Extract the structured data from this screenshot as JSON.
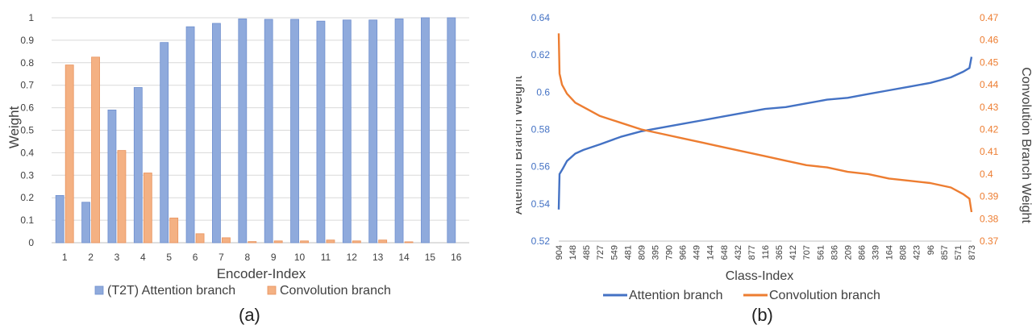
{
  "chart_data": [
    {
      "panel": "(a)",
      "type": "bar",
      "xlabel": "Encoder-Index",
      "ylabel": "Weight",
      "ylim": [
        0,
        1
      ],
      "yticks": [
        "0",
        "0.1",
        "0.2",
        "0.3",
        "0.4",
        "0.5",
        "0.6",
        "0.7",
        "0.8",
        "0.9",
        "1"
      ],
      "grid": true,
      "legend_position": "bottom",
      "categories": [
        "1",
        "2",
        "3",
        "4",
        "5",
        "6",
        "7",
        "8",
        "9",
        "10",
        "11",
        "12",
        "13",
        "14",
        "15",
        "16"
      ],
      "series": [
        {
          "name": "(T2T) Attention branch",
          "color": "#8faadc",
          "values": [
            0.21,
            0.18,
            0.59,
            0.69,
            0.89,
            0.96,
            0.975,
            0.995,
            0.993,
            0.993,
            0.985,
            0.99,
            0.99,
            0.995,
            1.0,
            1.0
          ]
        },
        {
          "name": "Convolution branch",
          "color": "#f4b183",
          "values": [
            0.79,
            0.825,
            0.41,
            0.31,
            0.11,
            0.04,
            0.022,
            0.005,
            0.008,
            0.008,
            0.012,
            0.008,
            0.012,
            0.004,
            0.0,
            0.0
          ]
        }
      ]
    },
    {
      "panel": "(b)",
      "type": "line",
      "xlabel": "Class-Index",
      "ylabel": "Attention Branch Weight",
      "y2label": "Convolution Branch Weight",
      "ylim": [
        0.52,
        0.64
      ],
      "yticks": [
        "0.52",
        "0.54",
        "0.56",
        "0.58",
        "0.6",
        "0.62",
        "0.64"
      ],
      "y2lim": [
        0.37,
        0.47
      ],
      "y2ticks": [
        "0.37",
        "0.38",
        "0.39",
        "0.4",
        "0.41",
        "0.42",
        "0.43",
        "0.44",
        "0.45",
        "0.46",
        "0.47"
      ],
      "grid": false,
      "legend_position": "bottom",
      "x_tick_labels": [
        "904",
        "148",
        "485",
        "727",
        "549",
        "481",
        "809",
        "395",
        "790",
        "966",
        "449",
        "144",
        "648",
        "432",
        "877",
        "116",
        "365",
        "412",
        "707",
        "561",
        "836",
        "209",
        "866",
        "339",
        "164",
        "808",
        "423",
        "96",
        "857",
        "571",
        "873"
      ],
      "series": [
        {
          "name": "Attention branch",
          "axis": "left",
          "color": "#4472c4",
          "points": [
            [
              0,
              0.537
            ],
            [
              0.002,
              0.556
            ],
            [
              0.01,
              0.559
            ],
            [
              0.02,
              0.563
            ],
            [
              0.04,
              0.567
            ],
            [
              0.06,
              0.569
            ],
            [
              0.1,
              0.572
            ],
            [
              0.15,
              0.576
            ],
            [
              0.2,
              0.579
            ],
            [
              0.25,
              0.581
            ],
            [
              0.3,
              0.583
            ],
            [
              0.35,
              0.585
            ],
            [
              0.4,
              0.587
            ],
            [
              0.45,
              0.589
            ],
            [
              0.5,
              0.591
            ],
            [
              0.55,
              0.592
            ],
            [
              0.6,
              0.594
            ],
            [
              0.65,
              0.596
            ],
            [
              0.7,
              0.597
            ],
            [
              0.75,
              0.599
            ],
            [
              0.8,
              0.601
            ],
            [
              0.85,
              0.603
            ],
            [
              0.9,
              0.605
            ],
            [
              0.95,
              0.608
            ],
            [
              0.98,
              0.611
            ],
            [
              0.995,
              0.613
            ],
            [
              1,
              0.619
            ]
          ]
        },
        {
          "name": "Convolution branch",
          "axis": "right",
          "color": "#ed7d31",
          "points": [
            [
              0,
              0.463
            ],
            [
              0.002,
              0.445
            ],
            [
              0.008,
              0.44
            ],
            [
              0.02,
              0.436
            ],
            [
              0.04,
              0.432
            ],
            [
              0.07,
              0.429
            ],
            [
              0.1,
              0.426
            ],
            [
              0.15,
              0.423
            ],
            [
              0.2,
              0.42
            ],
            [
              0.25,
              0.418
            ],
            [
              0.3,
              0.416
            ],
            [
              0.35,
              0.414
            ],
            [
              0.4,
              0.412
            ],
            [
              0.45,
              0.41
            ],
            [
              0.5,
              0.408
            ],
            [
              0.55,
              0.406
            ],
            [
              0.6,
              0.404
            ],
            [
              0.65,
              0.403
            ],
            [
              0.7,
              0.401
            ],
            [
              0.75,
              0.4
            ],
            [
              0.8,
              0.398
            ],
            [
              0.85,
              0.397
            ],
            [
              0.9,
              0.396
            ],
            [
              0.95,
              0.394
            ],
            [
              0.98,
              0.391
            ],
            [
              0.995,
              0.389
            ],
            [
              1,
              0.383
            ]
          ]
        }
      ]
    }
  ],
  "captions": [
    "(a)",
    "(b)"
  ]
}
